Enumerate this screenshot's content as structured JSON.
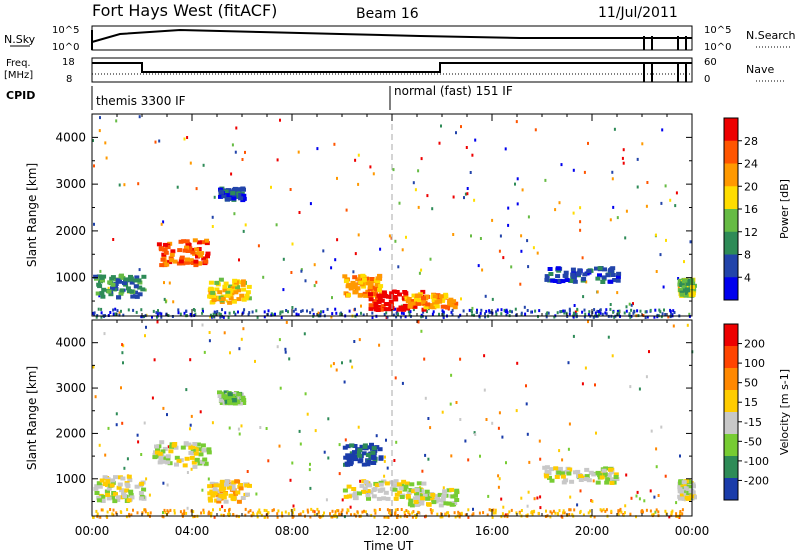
{
  "header": {
    "station": "Fort Hays West (fitACF)",
    "beam": "Beam 16",
    "date": "11/Jul/2011"
  },
  "top_panels": {
    "nsky_label": "N.Sky",
    "nsky_tick_top": "10^5",
    "nsky_tick_bottom": "10^0",
    "nsearch_label": "N.Search",
    "nsearch_tick_top": "10^5",
    "nsearch_tick_bottom": "10^0",
    "freq_label_1": "Freq.",
    "freq_label_2": "[MHz]",
    "freq_tick_top": "18",
    "freq_tick_bottom": "8",
    "nave_label": "Nave",
    "nave_tick_top": "60",
    "nave_tick_bottom": "0",
    "cpid_label": "CPID",
    "cpid_modes": [
      {
        "text": "themis 3300 IF",
        "start_hour": 0.0
      },
      {
        "text": "normal (fast) 151 IF",
        "start_hour": 12.0
      }
    ]
  },
  "chart_data": [
    {
      "type": "heatmap",
      "name": "power",
      "ylabel": "Slant Range [km]",
      "xlabel": "Time UT",
      "xlim": [
        0,
        24
      ],
      "ylim": [
        180,
        4500
      ],
      "x_ticks": [
        "00:00",
        "04:00",
        "08:00",
        "12:00",
        "16:00",
        "20:00",
        "00:00"
      ],
      "y_ticks": [
        "1000",
        "2000",
        "3000",
        "4000"
      ],
      "y_tick_values": [
        1000,
        2000,
        3000,
        4000
      ],
      "colorbar": {
        "label": "Power [dB]",
        "ticks": [
          "28",
          "24",
          "20",
          "16",
          "12",
          "8",
          "4"
        ],
        "colors": [
          "#0000ee",
          "#2244aa",
          "#2e8b57",
          "#66bb44",
          "#ffdd00",
          "#ff9900",
          "#ff5500",
          "#ee0000"
        ]
      },
      "regions": [
        {
          "t0": 0.0,
          "t1": 2.0,
          "r0": 600,
          "r1": 1100,
          "level": 2
        },
        {
          "t0": 2.5,
          "t1": 4.6,
          "r0": 1300,
          "r1": 1850,
          "level": 6
        },
        {
          "t0": 4.6,
          "t1": 6.2,
          "r0": 500,
          "r1": 1000,
          "level": 4
        },
        {
          "t0": 5.0,
          "t1": 6.0,
          "r0": 2700,
          "r1": 2950,
          "level": 1
        },
        {
          "t0": 10.0,
          "t1": 11.5,
          "r0": 650,
          "r1": 1100,
          "level": 5
        },
        {
          "t0": 11.0,
          "t1": 13.2,
          "r0": 350,
          "r1": 750,
          "level": 7
        },
        {
          "t0": 12.5,
          "t1": 14.5,
          "r0": 400,
          "r1": 700,
          "level": 5
        },
        {
          "t0": 18.0,
          "t1": 21.0,
          "r0": 950,
          "r1": 1250,
          "level": 1
        },
        {
          "t0": 23.4,
          "t1": 24.0,
          "r0": 650,
          "r1": 1000,
          "level": 3
        }
      ]
    },
    {
      "type": "heatmap",
      "name": "velocity",
      "ylabel": "Slant Range [km]",
      "xlabel": "Time UT",
      "xlim": [
        0,
        24
      ],
      "ylim": [
        180,
        4500
      ],
      "x_ticks": [
        "00:00",
        "04:00",
        "08:00",
        "12:00",
        "16:00",
        "20:00",
        "00:00"
      ],
      "y_ticks": [
        "1000",
        "2000",
        "3000",
        "4000"
      ],
      "y_tick_values": [
        1000,
        2000,
        3000,
        4000
      ],
      "colorbar": {
        "label": "Velocity [m s-1]",
        "ticks": [
          "200",
          "100",
          "50",
          "15",
          "-15",
          "-50",
          "-100",
          "-200"
        ],
        "colors": [
          "#1a3caa",
          "#2e8b57",
          "#77cc33",
          "#c8c8c8",
          "#ffcc00",
          "#ff8800",
          "#ff4400",
          "#ee0000"
        ]
      },
      "regions": [
        {
          "t0": 0.0,
          "t1": 2.0,
          "r0": 550,
          "r1": 1100,
          "level": 3
        },
        {
          "t0": 2.4,
          "t1": 4.6,
          "r0": 1300,
          "r1": 1850,
          "level": 3
        },
        {
          "t0": 4.6,
          "t1": 6.2,
          "r0": 500,
          "r1": 1000,
          "level": 4
        },
        {
          "t0": 5.0,
          "t1": 6.0,
          "r0": 2700,
          "r1": 2950,
          "level": 2
        },
        {
          "t0": 10.0,
          "t1": 11.5,
          "r0": 1350,
          "r1": 1800,
          "level": 0
        },
        {
          "t0": 10.0,
          "t1": 13.2,
          "r0": 600,
          "r1": 1000,
          "level": 3
        },
        {
          "t0": 12.5,
          "t1": 14.5,
          "r0": 450,
          "r1": 800,
          "level": 3
        },
        {
          "t0": 18.0,
          "t1": 21.0,
          "r0": 950,
          "r1": 1300,
          "level": 3
        },
        {
          "t0": 23.4,
          "t1": 24.0,
          "r0": 600,
          "r1": 1000,
          "level": 3
        }
      ]
    }
  ]
}
